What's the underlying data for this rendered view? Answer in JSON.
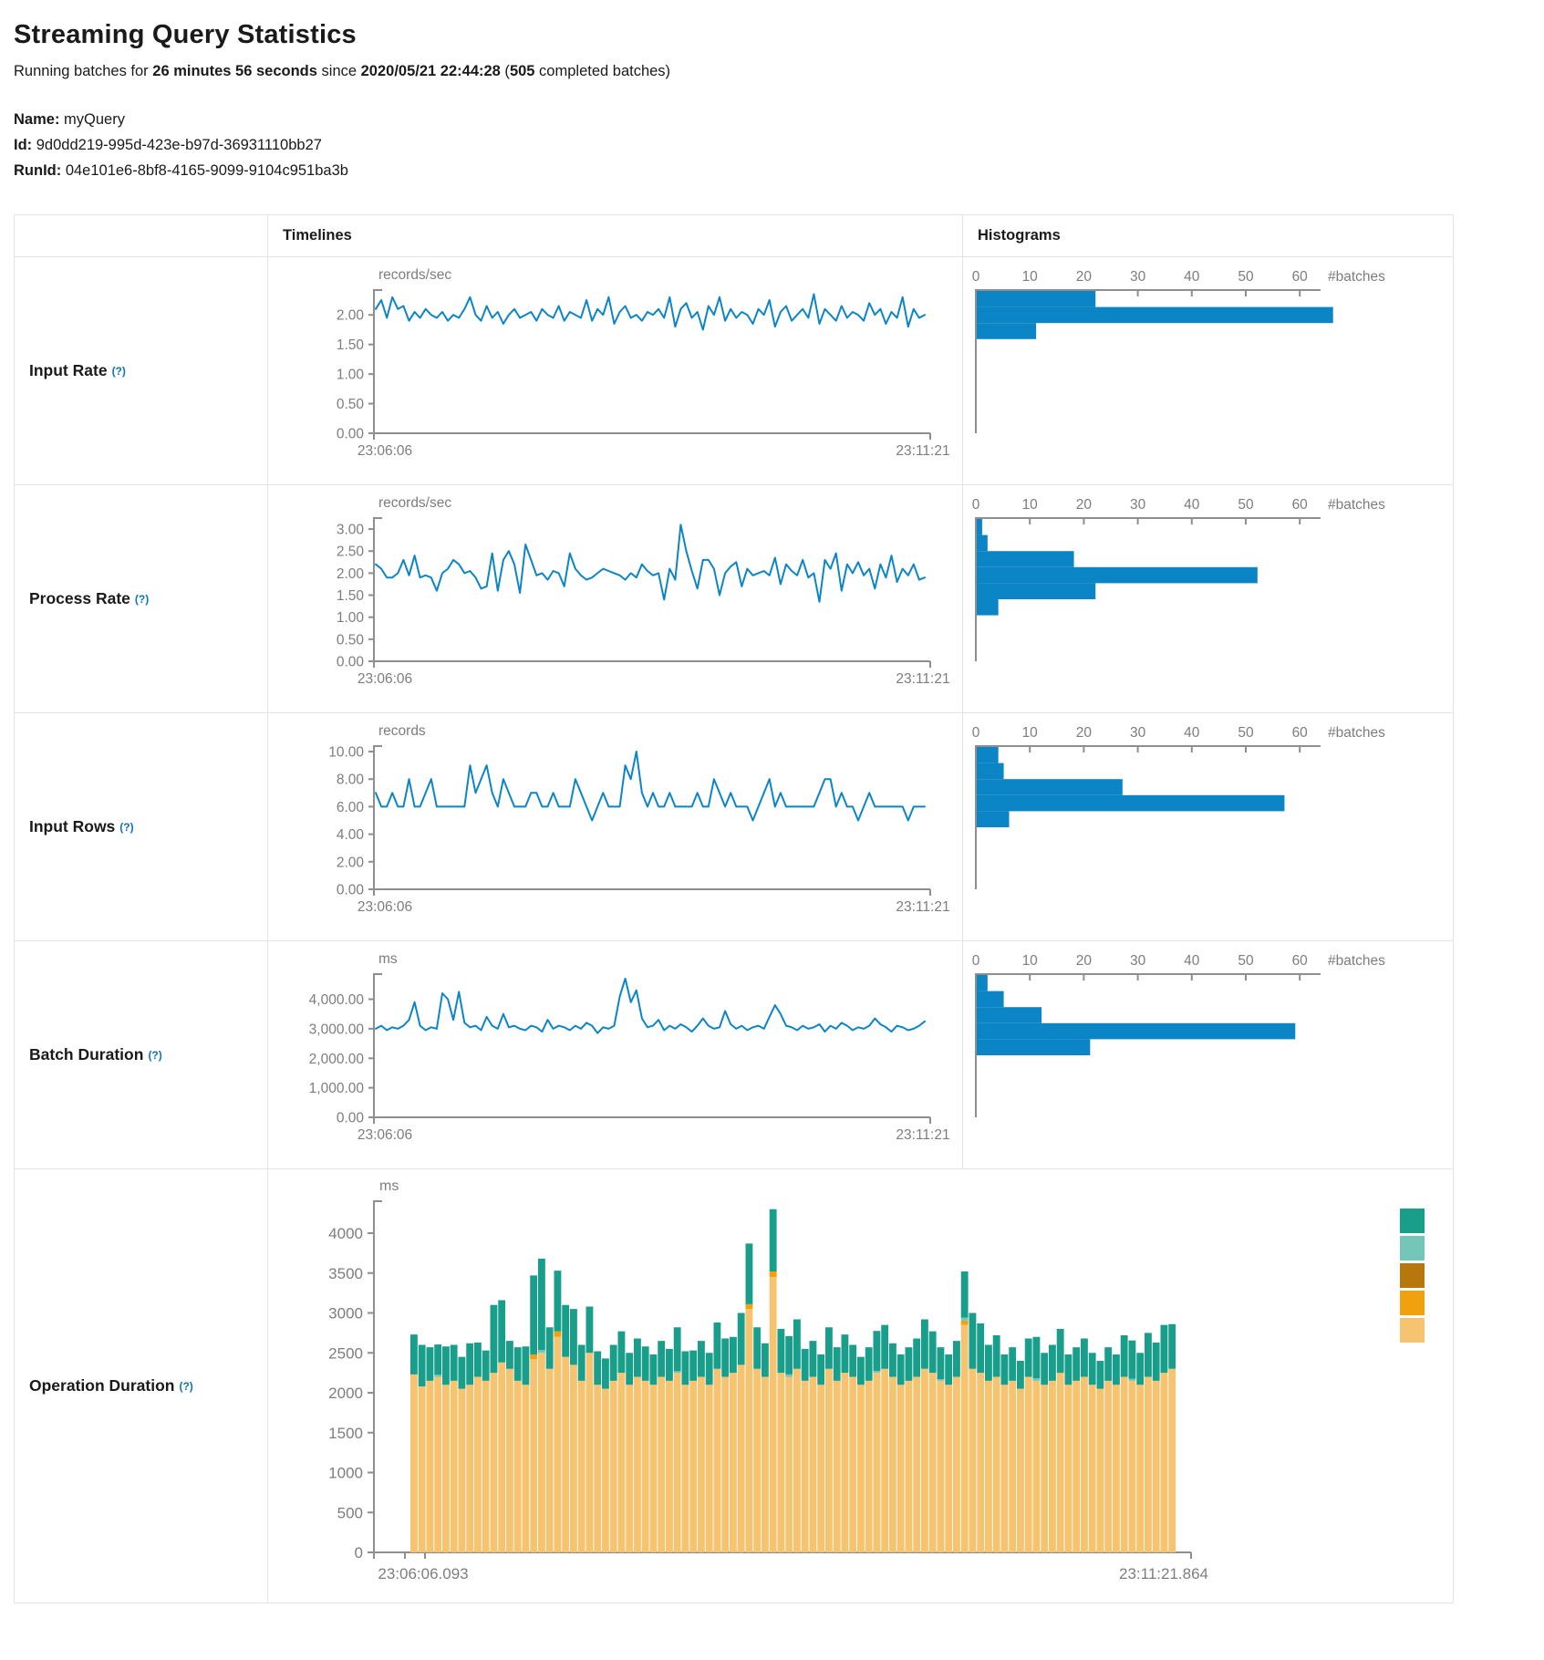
{
  "header": {
    "title": "Streaming Query Statistics",
    "running_prefix": "Running batches for ",
    "duration": "26 minutes 56 seconds",
    "since": " since ",
    "start_time": "2020/05/21 22:44:28",
    "paren_open": " (",
    "completed_count": "505",
    "paren_close": " completed batches)",
    "name_label": "Name:",
    "name_value": " myQuery",
    "id_label": "Id:",
    "id_value": " 9d0dd219-995d-423e-b97d-36931110bb27",
    "runid_label": "RunId:",
    "runid_value": " 04e101e6-8bf8-4165-9099-9104c951ba3b"
  },
  "table_header": {
    "timelines": "Timelines",
    "histograms": "Histograms"
  },
  "rows": [
    {
      "label": "Input Rate",
      "help": "(?)"
    },
    {
      "label": "Process Rate",
      "help": "(?)"
    },
    {
      "label": "Input Rows",
      "help": "(?)"
    },
    {
      "label": "Batch Duration",
      "help": "(?)"
    },
    {
      "label": "Operation Duration",
      "help": "(?)"
    }
  ],
  "colors": {
    "line_blue": "#0c85c7",
    "hist_blue": "#0c85c7",
    "axis_gray": "#8e8e8e",
    "label_gray": "#7d7d7d",
    "teal": "#1a9e8c",
    "light_teal": "#74c6b8",
    "brown": "#b8770d",
    "orange": "#f2a10e",
    "tan": "#f6c370"
  },
  "chart_data": [
    {
      "row": "Input Rate",
      "type": "line",
      "unit": "records/sec",
      "x_start": "23:06:06",
      "x_end": "23:11:21",
      "ytick_vals": [
        0,
        0.5,
        1,
        1.5,
        2
      ],
      "ytick_labels": [
        "0.00",
        "0.50",
        "1.00",
        "1.50",
        "2.00"
      ],
      "ylim": [
        0,
        2.42
      ],
      "color": "#0c85c7",
      "values": [
        2.1,
        2.25,
        1.95,
        2.3,
        2.1,
        2.15,
        1.9,
        2.05,
        1.95,
        2.1,
        2.0,
        1.95,
        2.05,
        1.9,
        2.0,
        1.95,
        2.1,
        2.3,
        2.0,
        1.9,
        2.15,
        1.95,
        2.05,
        1.85,
        2.0,
        2.1,
        1.95,
        2.0,
        2.05,
        1.9,
        2.1,
        2.0,
        1.95,
        2.15,
        1.9,
        2.05,
        2.0,
        1.95,
        2.25,
        1.9,
        2.1,
        2.0,
        2.3,
        1.85,
        2.05,
        2.15,
        1.95,
        2.0,
        1.9,
        2.05,
        2.0,
        2.1,
        1.95,
        2.3,
        1.8,
        2.1,
        2.2,
        1.95,
        2.05,
        1.75,
        2.15,
        2.0,
        2.3,
        1.9,
        2.1,
        1.95,
        2.05,
        2.0,
        1.85,
        2.1,
        2.0,
        2.25,
        1.8,
        2.05,
        2.15,
        1.9,
        2.0,
        2.1,
        1.95,
        2.35,
        1.85,
        2.1,
        2.0,
        1.9,
        2.15,
        1.95,
        2.05,
        2.0,
        1.9,
        2.2,
        2.0,
        2.1,
        1.85,
        2.05,
        1.95,
        2.3,
        1.8,
        2.1,
        1.95,
        2.0
      ]
    },
    {
      "row": "Input Rate",
      "type": "bar",
      "orientation": "horizontal",
      "xlabel": "#batches",
      "xticks": [
        0,
        10,
        20,
        30,
        40,
        50,
        60
      ],
      "xlim": [
        0,
        68
      ],
      "bar_order": "top-to-bottom",
      "color": "#0c85c7",
      "values": [
        22,
        66,
        11
      ]
    },
    {
      "row": "Process Rate",
      "type": "line",
      "unit": "records/sec",
      "x_start": "23:06:06",
      "x_end": "23:11:21",
      "ytick_vals": [
        0,
        0.5,
        1,
        1.5,
        2,
        2.5,
        3
      ],
      "ytick_labels": [
        "0.00",
        "0.50",
        "1.00",
        "1.50",
        "2.00",
        "2.50",
        "3.00"
      ],
      "ylim": [
        0,
        3.25
      ],
      "color": "#0c85c7",
      "values": [
        2.2,
        2.1,
        1.9,
        1.9,
        2.0,
        2.3,
        1.95,
        2.4,
        1.9,
        1.95,
        1.9,
        1.6,
        2.0,
        2.1,
        2.3,
        2.2,
        2.0,
        2.05,
        1.9,
        1.65,
        1.7,
        2.45,
        1.6,
        2.3,
        2.5,
        2.2,
        1.55,
        2.65,
        2.3,
        1.95,
        2.0,
        1.85,
        2.05,
        2.0,
        1.7,
        2.45,
        2.1,
        1.95,
        1.85,
        1.9,
        2.0,
        2.1,
        2.05,
        2.0,
        1.95,
        1.85,
        2.0,
        1.9,
        2.2,
        2.05,
        1.95,
        2.0,
        1.4,
        2.1,
        1.85,
        3.1,
        2.5,
        2.05,
        1.65,
        2.3,
        2.3,
        2.1,
        1.5,
        2.0,
        2.15,
        2.25,
        1.7,
        2.1,
        1.95,
        2.0,
        2.05,
        1.95,
        2.35,
        1.75,
        2.2,
        2.05,
        1.95,
        2.3,
        1.9,
        2.0,
        1.35,
        2.3,
        2.1,
        2.45,
        1.6,
        2.2,
        2.0,
        2.25,
        1.95,
        2.1,
        1.65,
        2.2,
        1.9,
        2.4,
        1.8,
        2.1,
        1.95,
        2.2,
        1.85,
        1.9
      ]
    },
    {
      "row": "Process Rate",
      "type": "bar",
      "orientation": "horizontal",
      "xlabel": "#batches",
      "xticks": [
        0,
        10,
        20,
        30,
        40,
        50,
        60
      ],
      "xlim": [
        0,
        68
      ],
      "bar_order": "top-to-bottom",
      "color": "#0c85c7",
      "values": [
        1,
        2,
        18,
        52,
        22,
        4
      ]
    },
    {
      "row": "Input Rows",
      "type": "line",
      "unit": "records",
      "x_start": "23:06:06",
      "x_end": "23:11:21",
      "ytick_vals": [
        0,
        2,
        4,
        6,
        8,
        10
      ],
      "ytick_labels": [
        "0.00",
        "2.00",
        "4.00",
        "6.00",
        "8.00",
        "10.00"
      ],
      "ylim": [
        0,
        10.4
      ],
      "color": "#0c85c7",
      "values": [
        7,
        6,
        6,
        7,
        6,
        6,
        8,
        6,
        6,
        7,
        8,
        6,
        6,
        6,
        6,
        6,
        6,
        9,
        7,
        8,
        9,
        7,
        6,
        8,
        7,
        6,
        6,
        6,
        7,
        7,
        6,
        6,
        7,
        6,
        6,
        6,
        8,
        7,
        6,
        5,
        6,
        7,
        6,
        6,
        6,
        9,
        8,
        10,
        7,
        6,
        7,
        6,
        6,
        7,
        6,
        6,
        6,
        6,
        7,
        6,
        6,
        8,
        7,
        6,
        7,
        6,
        6,
        6,
        5,
        6,
        7,
        8,
        6,
        7,
        6,
        6,
        6,
        6,
        6,
        6,
        7,
        8,
        8,
        6,
        7,
        6,
        6,
        5,
        6,
        7,
        6,
        6,
        6,
        6,
        6,
        6,
        5,
        6,
        6,
        6
      ]
    },
    {
      "row": "Input Rows",
      "type": "bar",
      "orientation": "horizontal",
      "xlabel": "#batches",
      "xticks": [
        0,
        10,
        20,
        30,
        40,
        50,
        60
      ],
      "xlim": [
        0,
        68
      ],
      "bar_order": "top-to-bottom",
      "color": "#0c85c7",
      "values": [
        4,
        5,
        27,
        57,
        6
      ]
    },
    {
      "row": "Batch Duration",
      "type": "line",
      "unit": "ms",
      "x_start": "23:06:06",
      "x_end": "23:11:21",
      "ytick_vals": [
        0,
        1000,
        2000,
        3000,
        4000
      ],
      "ytick_labels": [
        "0.00",
        "1,000.00",
        "2,000.00",
        "3,000.00",
        "4,000.00"
      ],
      "ylim": [
        0,
        4850
      ],
      "color": "#0c85c7",
      "values": [
        3000,
        3100,
        2950,
        3050,
        3000,
        3100,
        3300,
        3900,
        3100,
        2950,
        3050,
        3000,
        4200,
        4000,
        3300,
        4250,
        3200,
        3050,
        3100,
        2950,
        3400,
        3100,
        3000,
        3500,
        3050,
        3100,
        3000,
        2950,
        3100,
        3050,
        2900,
        3300,
        3000,
        3100,
        3050,
        2950,
        3100,
        3000,
        3200,
        3100,
        2850,
        3050,
        3000,
        3100,
        4100,
        4700,
        3900,
        4300,
        3350,
        3050,
        3100,
        3300,
        2950,
        3100,
        3000,
        3150,
        3050,
        2900,
        3100,
        3350,
        3100,
        3000,
        3050,
        3600,
        3150,
        3000,
        3100,
        2950,
        3050,
        3100,
        3000,
        3400,
        3800,
        3500,
        3100,
        3050,
        2950,
        3100,
        3000,
        3050,
        3150,
        2900,
        3100,
        3000,
        3200,
        3100,
        2950,
        3050,
        3000,
        3100,
        3350,
        3150,
        3050,
        2900,
        3100,
        3050,
        2950,
        3000,
        3100,
        3250
      ]
    },
    {
      "row": "Batch Duration",
      "type": "bar",
      "orientation": "horizontal",
      "xlabel": "#batches",
      "xticks": [
        0,
        10,
        20,
        30,
        40,
        50,
        60
      ],
      "xlim": [
        0,
        68
      ],
      "bar_order": "top-to-bottom",
      "color": "#0c85c7",
      "values": [
        2,
        5,
        12,
        59,
        21
      ]
    },
    {
      "row": "Operation Duration",
      "type": "stacked-bar",
      "unit": "ms",
      "x_start": "23:06:06.093",
      "x_end": "23:11:21.864",
      "ytick_vals": [
        0,
        500,
        1000,
        1500,
        2000,
        2500,
        3000,
        3500,
        4000
      ],
      "ytick_labels": [
        "0",
        "500",
        "1000",
        "1500",
        "2000",
        "2500",
        "3000",
        "3500",
        "4000"
      ],
      "ylim": [
        0,
        4400
      ],
      "legend_colors": [
        "#1a9e8c",
        "#74c6b8",
        "#b8770d",
        "#f2a10e",
        "#f6c370"
      ],
      "series": [
        {
          "name": "tan",
          "color": "#f6c370",
          "values": [
            2230,
            2080,
            2150,
            2200,
            2100,
            2150,
            2050,
            2100,
            2200,
            2150,
            2250,
            2380,
            2300,
            2150,
            2100,
            2420,
            2500,
            2300,
            2700,
            2450,
            2350,
            2150,
            2500,
            2100,
            2050,
            2150,
            2250,
            2100,
            2200,
            2150,
            2100,
            2200,
            2150,
            2250,
            2100,
            2150,
            2200,
            2100,
            2300,
            2200,
            2250,
            2350,
            3050,
            2300,
            2200,
            3450,
            2250,
            2200,
            2300,
            2150,
            2200,
            2100,
            2300,
            2150,
            2250,
            2200,
            2100,
            2150,
            2250,
            2300,
            2200,
            2100,
            2150,
            2200,
            2300,
            2250,
            2150,
            2100,
            2200,
            2850,
            2300,
            2250,
            2150,
            2200,
            2100,
            2150,
            2050,
            2200,
            2150,
            2100,
            2150,
            2250,
            2100,
            2150,
            2200,
            2100,
            2050,
            2150,
            2100,
            2200,
            2150,
            2100,
            2200,
            2150,
            2250,
            2300
          ]
        },
        {
          "name": "orange",
          "color": "#f2a10e",
          "values": [
            0,
            0,
            0,
            0,
            0,
            0,
            0,
            0,
            0,
            0,
            0,
            0,
            0,
            0,
            0,
            60,
            0,
            0,
            70,
            0,
            0,
            0,
            0,
            0,
            0,
            0,
            0,
            0,
            0,
            0,
            0,
            0,
            0,
            0,
            0,
            0,
            0,
            0,
            0,
            0,
            0,
            0,
            60,
            0,
            0,
            70,
            0,
            0,
            0,
            0,
            0,
            0,
            0,
            0,
            0,
            0,
            0,
            0,
            0,
            0,
            0,
            0,
            0,
            0,
            0,
            0,
            0,
            0,
            0,
            55,
            0,
            0,
            0,
            0,
            0,
            0,
            0,
            0,
            0,
            0,
            0,
            0,
            0,
            0,
            0,
            0,
            0,
            0,
            0,
            0,
            0,
            0,
            0,
            0,
            0,
            0
          ]
        },
        {
          "name": "light-teal",
          "color": "#74c6b8",
          "values": [
            0,
            0,
            0,
            25,
            0,
            0,
            0,
            0,
            0,
            0,
            0,
            0,
            0,
            0,
            0,
            0,
            35,
            0,
            0,
            0,
            0,
            0,
            0,
            0,
            0,
            0,
            0,
            0,
            0,
            0,
            0,
            0,
            0,
            20,
            0,
            0,
            0,
            0,
            0,
            0,
            0,
            0,
            0,
            0,
            0,
            0,
            0,
            30,
            0,
            0,
            0,
            0,
            0,
            0,
            0,
            0,
            0,
            0,
            25,
            0,
            0,
            0,
            0,
            0,
            0,
            0,
            20,
            0,
            0,
            35,
            0,
            0,
            0,
            0,
            0,
            0,
            0,
            0,
            30,
            0,
            0,
            0,
            0,
            0,
            0,
            0,
            0,
            0,
            0,
            0,
            25,
            0,
            0,
            0,
            0,
            0
          ]
        },
        {
          "name": "teal",
          "color": "#1a9e8c",
          "values": [
            500,
            520,
            420,
            380,
            480,
            450,
            400,
            520,
            430,
            380,
            850,
            780,
            350,
            420,
            480,
            990,
            1145,
            520,
            760,
            650,
            700,
            450,
            580,
            420,
            380,
            450,
            520,
            400,
            480,
            430,
            380,
            450,
            400,
            550,
            420,
            380,
            450,
            400,
            580,
            480,
            450,
            650,
            760,
            520,
            420,
            780,
            550,
            480,
            620,
            400,
            450,
            380,
            520,
            420,
            480,
            400,
            350,
            420,
            500,
            550,
            420,
            380,
            420,
            480,
            620,
            520,
            400,
            380,
            450,
            580,
            700,
            620,
            450,
            520,
            380,
            420,
            350,
            480,
            520,
            400,
            450,
            550,
            380,
            420,
            480,
            400,
            350,
            420,
            380,
            520,
            480,
            400,
            550,
            480,
            600,
            560
          ]
        }
      ]
    }
  ]
}
